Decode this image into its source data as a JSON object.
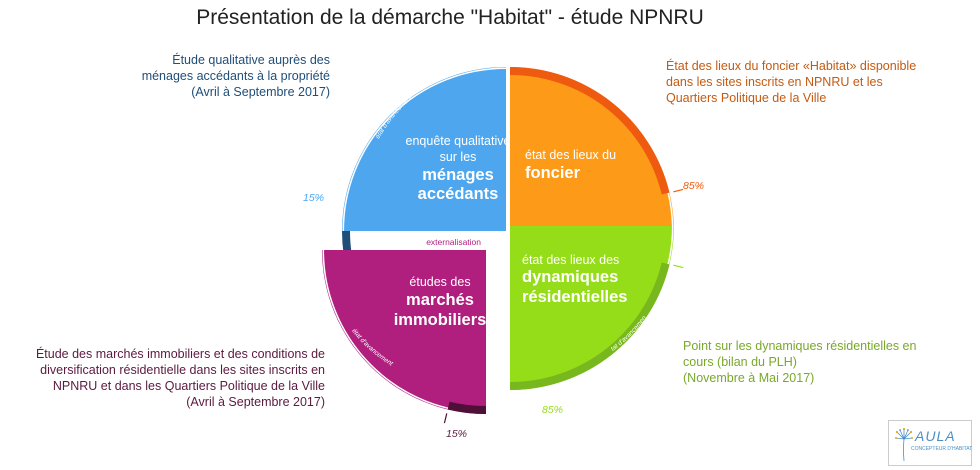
{
  "title": "Présentation de la démarche \"Habitat\" - étude NPNRU",
  "arc_label": "état d'avancement",
  "colors": {
    "menages": "#4da6ee",
    "foncier": "#fd9b19",
    "dynamiques": "#96dd19",
    "marches": "#b01e7e",
    "menages_dark": "#1f4e79",
    "foncier_dark": "#ee5a0f",
    "dynamiques_dark": "#78b71e",
    "marches_dark": "#4e1036"
  },
  "quadrants": {
    "menages": {
      "line1": "enquête qualitative",
      "line2": "sur les",
      "bold1": "ménages",
      "bold2": "accédants",
      "progress": 15,
      "progress_label": "15%"
    },
    "foncier": {
      "line1": "état des lieux du",
      "bold1": "foncier",
      "progress": 85,
      "progress_label": "85%"
    },
    "dynamiques": {
      "line1": "état des lieux des",
      "bold1": "dynamiques",
      "bold2": "résidentielles",
      "progress": 85,
      "progress_label": "85%"
    },
    "marches": {
      "line1": "études des",
      "bold1": "marchés",
      "bold2": "immobiliers",
      "progress": 15,
      "progress_label": "15%",
      "tag": "externalisation"
    }
  },
  "descriptions": {
    "top_left": [
      "Étude qualitative auprès des",
      "ménages accédants à la propriété",
      "(Avril à Septembre 2017)"
    ],
    "top_right": [
      "État des lieux du foncier «Habitat» disponible",
      "dans les sites inscrits en NPNRU et les",
      "Quartiers Politique de la Ville"
    ],
    "bottom_left": [
      "Étude des marchés immobiliers et des conditions de",
      "diversification résidentielle dans les sites inscrits en",
      "NPNRU et dans les Quartiers Politique de la Ville",
      "(Avril à Septembre 2017)"
    ],
    "bottom_right": [
      "Point sur les dynamiques résidentielles en",
      "cours  (bilan du PLH)",
      "(Novembre à Mai 2017)"
    ]
  },
  "logo": {
    "name": "AULA",
    "subtitle": "CONCEPTEUR D'HABITAT",
    "icon": "dandelion-icon"
  }
}
